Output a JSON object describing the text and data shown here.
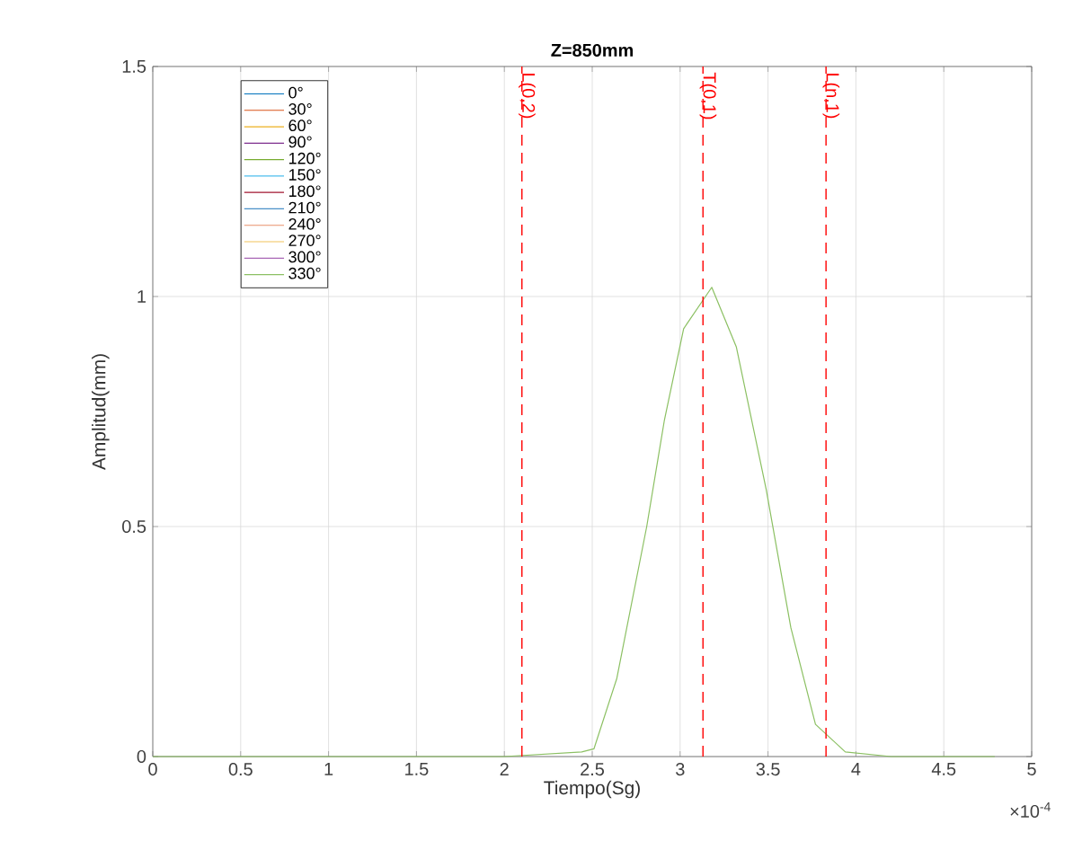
{
  "chart_data": {
    "type": "line",
    "title": "Z=850mm",
    "xlabel": "Tiempo(Sg)",
    "ylabel": "Amplitud(mm)",
    "x": [
      0,
      2,
      2.44,
      2.51,
      2.64,
      2.81,
      2.91,
      3.02,
      3.18,
      3.32,
      3.49,
      3.63,
      3.77,
      3.94,
      4.2,
      4.79
    ],
    "series": [
      {
        "name": "0°",
        "color": "#0072bd",
        "values": [
          null,
          null,
          null,
          null,
          null,
          null,
          null,
          null,
          null,
          null,
          null,
          null,
          null,
          null,
          null,
          null
        ]
      },
      {
        "name": "30°",
        "color": "#d95319",
        "values": [
          null,
          null,
          null,
          null,
          null,
          null,
          null,
          null,
          null,
          null,
          null,
          null,
          null,
          null,
          null,
          null
        ]
      },
      {
        "name": "60°",
        "color": "#edb120",
        "values": [
          null,
          null,
          null,
          null,
          null,
          null,
          null,
          null,
          null,
          null,
          null,
          null,
          null,
          null,
          null,
          null
        ]
      },
      {
        "name": "90°",
        "color": "#7e2f8e",
        "values": [
          null,
          null,
          null,
          null,
          null,
          null,
          null,
          null,
          null,
          null,
          null,
          null,
          null,
          null,
          null,
          null
        ]
      },
      {
        "name": "120°",
        "color": "#77ac30",
        "values": [
          null,
          null,
          null,
          null,
          null,
          null,
          null,
          null,
          null,
          null,
          null,
          null,
          null,
          null,
          null,
          null
        ]
      },
      {
        "name": "150°",
        "color": "#4dbeee",
        "values": [
          null,
          null,
          null,
          null,
          null,
          null,
          null,
          null,
          null,
          null,
          null,
          null,
          null,
          null,
          null,
          null
        ]
      },
      {
        "name": "180°",
        "color": "#a2142f",
        "values": [
          null,
          null,
          null,
          null,
          null,
          null,
          null,
          null,
          null,
          null,
          null,
          null,
          null,
          null,
          null,
          null
        ]
      },
      {
        "name": "210°",
        "color": "#4a90c8",
        "values": [
          null,
          null,
          null,
          null,
          null,
          null,
          null,
          null,
          null,
          null,
          null,
          null,
          null,
          null,
          null,
          null
        ]
      },
      {
        "name": "240°",
        "color": "#e8906a",
        "values": [
          null,
          null,
          null,
          null,
          null,
          null,
          null,
          null,
          null,
          null,
          null,
          null,
          null,
          null,
          null,
          null
        ]
      },
      {
        "name": "270°",
        "color": "#f2c45a",
        "values": [
          null,
          null,
          null,
          null,
          null,
          null,
          null,
          null,
          null,
          null,
          null,
          null,
          null,
          null,
          null,
          null
        ]
      },
      {
        "name": "300°",
        "color": "#a866b5",
        "values": [
          null,
          null,
          null,
          null,
          null,
          null,
          null,
          null,
          null,
          null,
          null,
          null,
          null,
          null,
          null,
          null
        ]
      },
      {
        "name": "330°",
        "color": "#8cc063",
        "values": [
          0,
          0,
          0.01,
          0.017,
          0.17,
          0.5,
          0.73,
          0.93,
          1.02,
          0.89,
          0.58,
          0.28,
          0.07,
          0.01,
          0,
          0
        ]
      }
    ],
    "xlim": [
      0,
      5
    ],
    "ylim": [
      0,
      1.5
    ],
    "xticks": [
      0,
      0.5,
      1,
      1.5,
      2,
      2.5,
      3,
      3.5,
      4,
      4.5,
      5
    ],
    "yticks": [
      0,
      0.5,
      1,
      1.5
    ],
    "ref_lines": [
      {
        "axis": "x",
        "value": 2.1,
        "label": "L(0,2)",
        "color": "#ff0000",
        "line_style": "dashed"
      },
      {
        "axis": "x",
        "value": 3.13,
        "label": "T(0,1)",
        "color": "#ff0000",
        "line_style": "dashed"
      },
      {
        "axis": "x",
        "value": 3.83,
        "label": "L(n,1)",
        "color": "#ff0000",
        "line_style": "dashed"
      }
    ],
    "annotations": [
      "×10$^{-4}$"
    ],
    "grid": true,
    "legend": "top left",
    "marker": "none",
    "line_style": "solid"
  }
}
